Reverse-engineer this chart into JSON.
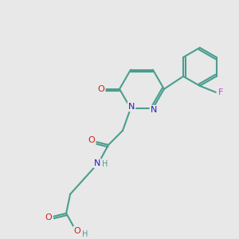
{
  "background_color": "#e8e8e8",
  "atom_colors": {
    "C": "#4a9e8e",
    "N": "#2020cc",
    "O": "#cc2020",
    "F": "#cc44cc",
    "H": "#4a9e8e"
  },
  "bond_color": "#4a9e8e",
  "figsize": [
    3.0,
    3.0
  ],
  "dpi": 100
}
